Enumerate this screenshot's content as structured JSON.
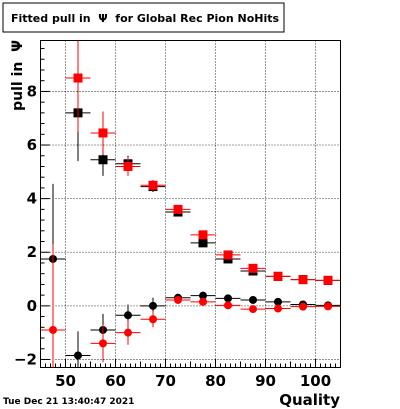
{
  "chart_data": {
    "type": "scatter",
    "title": "Fitted pull in  Ψ  for Global Rec Pion NoHits",
    "xlabel": "Quality",
    "ylabel": "pull in  Ψ",
    "xlim": [
      45,
      105
    ],
    "ylim": [
      -2.3,
      9.9
    ],
    "x_ticks": [
      50,
      60,
      70,
      80,
      90,
      100
    ],
    "y_ticks": [
      -2,
      0,
      2,
      4,
      6,
      8
    ],
    "grid": true,
    "series": [
      {
        "marker": "square",
        "color": "#000000",
        "points": [
          {
            "x": 52.5,
            "y": 7.2,
            "xerr": 2.5,
            "yerr": 1.8
          },
          {
            "x": 57.5,
            "y": 5.45,
            "xerr": 2.5,
            "yerr": 0.6
          },
          {
            "x": 62.5,
            "y": 5.3,
            "xerr": 2.5,
            "yerr": 0.3
          },
          {
            "x": 67.5,
            "y": 4.45,
            "xerr": 2.5,
            "yerr": 0.2
          },
          {
            "x": 72.5,
            "y": 3.5,
            "xerr": 2.5,
            "yerr": 0.15
          },
          {
            "x": 77.5,
            "y": 2.35,
            "xerr": 2.5,
            "yerr": 0.12
          },
          {
            "x": 82.5,
            "y": 1.75,
            "xerr": 2.5,
            "yerr": 0.1
          },
          {
            "x": 87.5,
            "y": 1.3,
            "xerr": 2.5,
            "yerr": 0.08
          },
          {
            "x": 92.5,
            "y": 1.1,
            "xerr": 2.5,
            "yerr": 0.07
          },
          {
            "x": 97.5,
            "y": 0.98,
            "xerr": 2.5,
            "yerr": 0.06
          },
          {
            "x": 102.5,
            "y": 0.95,
            "xerr": 2.5,
            "yerr": 0.06
          }
        ]
      },
      {
        "marker": "square",
        "color": "#ff0000",
        "points": [
          {
            "x": 52.5,
            "y": 8.5,
            "xerr": 2.5,
            "yerr": 2.0
          },
          {
            "x": 57.5,
            "y": 6.45,
            "xerr": 2.5,
            "yerr": 0.8
          },
          {
            "x": 62.5,
            "y": 5.2,
            "xerr": 2.5,
            "yerr": 0.35
          },
          {
            "x": 67.5,
            "y": 4.5,
            "xerr": 2.5,
            "yerr": 0.2
          },
          {
            "x": 72.5,
            "y": 3.6,
            "xerr": 2.5,
            "yerr": 0.15
          },
          {
            "x": 77.5,
            "y": 2.65,
            "xerr": 2.5,
            "yerr": 0.12
          },
          {
            "x": 82.5,
            "y": 1.9,
            "xerr": 2.5,
            "yerr": 0.1
          },
          {
            "x": 87.5,
            "y": 1.4,
            "xerr": 2.5,
            "yerr": 0.08
          },
          {
            "x": 92.5,
            "y": 1.1,
            "xerr": 2.5,
            "yerr": 0.07
          },
          {
            "x": 97.5,
            "y": 0.98,
            "xerr": 2.5,
            "yerr": 0.06
          },
          {
            "x": 102.5,
            "y": 0.95,
            "xerr": 2.5,
            "yerr": 0.06
          }
        ]
      },
      {
        "marker": "circle",
        "color": "#000000",
        "points": [
          {
            "x": 47.5,
            "y": 1.75,
            "xerr": 2.5,
            "yerr": 2.8
          },
          {
            "x": 52.5,
            "y": -1.85,
            "xerr": 2.5,
            "yerr": 0.9
          },
          {
            "x": 57.5,
            "y": -0.9,
            "xerr": 2.5,
            "yerr": 0.6
          },
          {
            "x": 62.5,
            "y": -0.35,
            "xerr": 2.5,
            "yerr": 0.4
          },
          {
            "x": 67.5,
            "y": 0.0,
            "xerr": 2.5,
            "yerr": 0.3
          },
          {
            "x": 72.5,
            "y": 0.3,
            "xerr": 2.5,
            "yerr": 0.15
          },
          {
            "x": 77.5,
            "y": 0.38,
            "xerr": 2.5,
            "yerr": 0.12
          },
          {
            "x": 82.5,
            "y": 0.28,
            "xerr": 2.5,
            "yerr": 0.1
          },
          {
            "x": 87.5,
            "y": 0.22,
            "xerr": 2.5,
            "yerr": 0.08
          },
          {
            "x": 92.5,
            "y": 0.15,
            "xerr": 2.5,
            "yerr": 0.07
          },
          {
            "x": 97.5,
            "y": 0.05,
            "xerr": 2.5,
            "yerr": 0.06
          },
          {
            "x": 102.5,
            "y": 0.02,
            "xerr": 2.5,
            "yerr": 0.06
          }
        ]
      },
      {
        "marker": "circle",
        "color": "#ff0000",
        "points": [
          {
            "x": 47.5,
            "y": -0.9,
            "xerr": 2.5,
            "yerr": 3.2
          },
          {
            "x": 57.5,
            "y": -1.4,
            "xerr": 2.5,
            "yerr": 0.7
          },
          {
            "x": 62.5,
            "y": -1.0,
            "xerr": 2.5,
            "yerr": 0.45
          },
          {
            "x": 67.5,
            "y": -0.5,
            "xerr": 2.5,
            "yerr": 0.3
          },
          {
            "x": 72.5,
            "y": 0.22,
            "xerr": 2.5,
            "yerr": 0.15
          },
          {
            "x": 77.5,
            "y": 0.15,
            "xerr": 2.5,
            "yerr": 0.12
          },
          {
            "x": 82.5,
            "y": 0.02,
            "xerr": 2.5,
            "yerr": 0.1
          },
          {
            "x": 87.5,
            "y": -0.12,
            "xerr": 2.5,
            "yerr": 0.08
          },
          {
            "x": 92.5,
            "y": -0.1,
            "xerr": 2.5,
            "yerr": 0.07
          },
          {
            "x": 97.5,
            "y": -0.03,
            "xerr": 2.5,
            "yerr": 0.06
          },
          {
            "x": 102.5,
            "y": -0.02,
            "xerr": 2.5,
            "yerr": 0.06
          }
        ]
      }
    ]
  },
  "timestamp": "Tue Dec 21 13:40:47 2021"
}
